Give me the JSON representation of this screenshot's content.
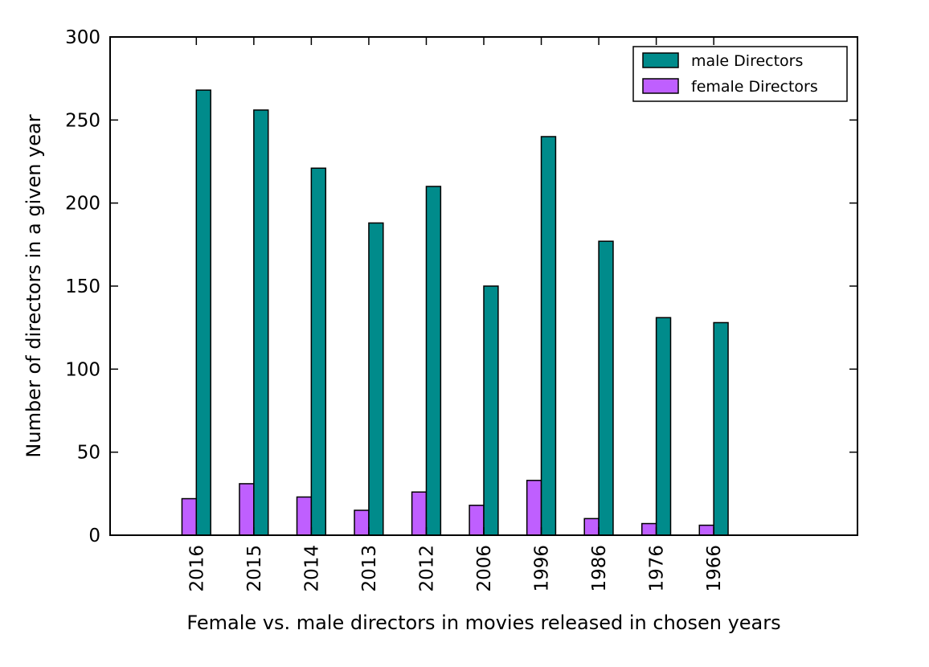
{
  "chart_data": {
    "type": "bar",
    "title": "",
    "xlabel": "Female vs. male directors in movies released in chosen years",
    "ylabel": "Number of directors in a given year",
    "categories": [
      "2016",
      "2015",
      "2014",
      "2013",
      "2012",
      "2006",
      "1996",
      "1986",
      "1976",
      "1966"
    ],
    "series": [
      {
        "name": "male Directors",
        "color": "#008b8b",
        "values": [
          268,
          256,
          221,
          188,
          210,
          150,
          240,
          177,
          131,
          128
        ]
      },
      {
        "name": "female Directors",
        "color": "#bf5fff",
        "values": [
          22,
          31,
          23,
          15,
          26,
          18,
          33,
          10,
          7,
          6
        ]
      }
    ],
    "ylim": [
      0,
      300
    ],
    "yticks": [
      0,
      50,
      100,
      150,
      200,
      250,
      300
    ],
    "grid": false,
    "legend_position": "top-right"
  }
}
